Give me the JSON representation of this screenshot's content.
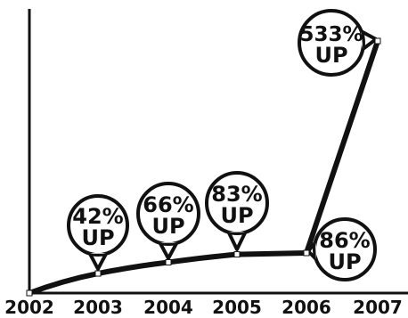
{
  "chart_data": {
    "type": "line",
    "title": "",
    "xlabel": "",
    "ylabel": "",
    "categories": [
      "2002",
      "2003",
      "2004",
      "2005",
      "2006",
      "2007"
    ],
    "values": [
      0,
      42,
      66,
      83,
      86,
      533
    ],
    "ylim": [
      0,
      560
    ],
    "grid": false,
    "legend": "none",
    "annotations": [
      {
        "category": "2003",
        "line1": "42%",
        "line2": "UP"
      },
      {
        "category": "2004",
        "line1": "66%",
        "line2": "UP"
      },
      {
        "category": "2005",
        "line1": "83%",
        "line2": "UP"
      },
      {
        "category": "2006",
        "line1": "86%",
        "line2": "UP"
      },
      {
        "category": "2007",
        "line1": "533%",
        "line2": "UP"
      }
    ],
    "colors": {
      "line": "#111111",
      "marker_fill": "#ffffff",
      "background": "#ffffff"
    }
  }
}
